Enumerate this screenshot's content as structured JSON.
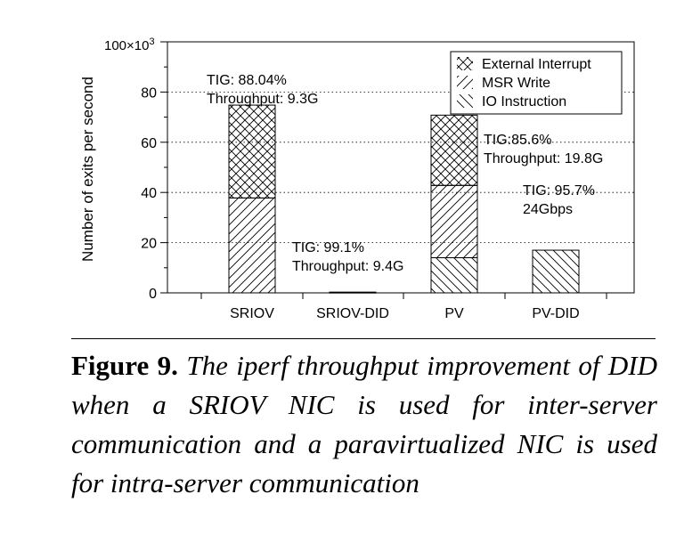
{
  "chart_data": {
    "type": "bar",
    "stacked": true,
    "ylabel": "Number of exits per second",
    "y_scale_label": "100×10",
    "y_scale_exponent": "3",
    "ylim": [
      0,
      100000
    ],
    "yticks": [
      0,
      20000,
      40000,
      60000,
      80000
    ],
    "ytick_labels": [
      "0",
      "20",
      "40",
      "60",
      "80"
    ],
    "grid": "horizontal dotted",
    "legend_position": "top-right",
    "categories": [
      "SRIOV",
      "SRIOV-DID",
      "PV",
      "PV-DID"
    ],
    "series": [
      {
        "name": "IO Instruction",
        "pattern": "back-diagonal",
        "values": [
          0,
          0,
          14000,
          17000
        ]
      },
      {
        "name": "MSR Write",
        "pattern": "forward-diagonal",
        "values": [
          37800,
          300,
          28800,
          0
        ]
      },
      {
        "name": "External Interrupt",
        "pattern": "crosshatch",
        "values": [
          37000,
          0,
          28000,
          0
        ]
      }
    ],
    "annotations": [
      {
        "category": "SRIOV",
        "lines": [
          "TIG: 88.04%",
          "Throughput: 9.3G"
        ]
      },
      {
        "category": "SRIOV-DID",
        "lines": [
          "TIG: 99.1%",
          "Throughput: 9.4G"
        ]
      },
      {
        "category": "PV",
        "lines": [
          "TIG:85.6%",
          "Throughput: 19.8G"
        ]
      },
      {
        "category": "PV-DID",
        "lines": [
          "TIG: 95.7%",
          "24Gbps"
        ]
      }
    ]
  },
  "caption": {
    "label": "Figure 9.",
    "text": "The iperf throughput improvement of DID when a SRIOV NIC is used for inter-server communication and a paravirtualized NIC is used for intra-server communication"
  }
}
